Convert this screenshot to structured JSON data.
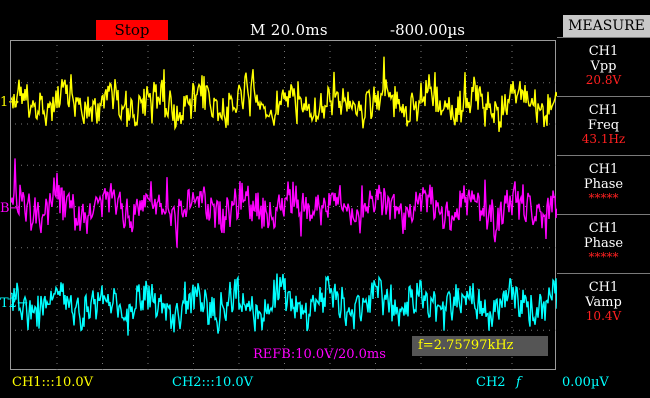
{
  "status": {
    "run_state": "Stop",
    "timebase": "M 20.0ms",
    "trigger_position": "-800.00µs"
  },
  "channels": {
    "ch1": {
      "marker": "1",
      "color": "#ffff00"
    },
    "ref_b": {
      "marker": "B",
      "color": "#ff00ff"
    },
    "t2": {
      "marker": "T2",
      "color": "#00ffff"
    }
  },
  "reference_text": "REFB:10.0V/20.0ms",
  "frequency_readout": "f=2.75797kHz",
  "bottom_bar": {
    "ch1_scale": "CH1:::10.0V",
    "ch2_scale": "CH2:::10.0V",
    "trigger_source": "CH2",
    "trigger_edge": "f",
    "trigger_level": "0.00µV"
  },
  "measure": {
    "title": "MEASURE",
    "items": [
      {
        "channel": "CH1",
        "label": "Vpp",
        "value": "20.8V"
      },
      {
        "channel": "CH1",
        "label": "Freq",
        "value": "43.1Hz"
      },
      {
        "channel": "CH1",
        "label": "Phase",
        "value": "*****"
      },
      {
        "channel": "CH1",
        "label": "Phase",
        "value": "*****"
      },
      {
        "channel": "CH1",
        "label": "Vamp",
        "value": "10.4V"
      }
    ]
  },
  "colors": {
    "stop_badge": "#ff0000",
    "measure_value": "#ff2020",
    "ch1_trace": "#ffff00",
    "refb_trace": "#ff00ff",
    "ch2_trace": "#00ffff"
  }
}
